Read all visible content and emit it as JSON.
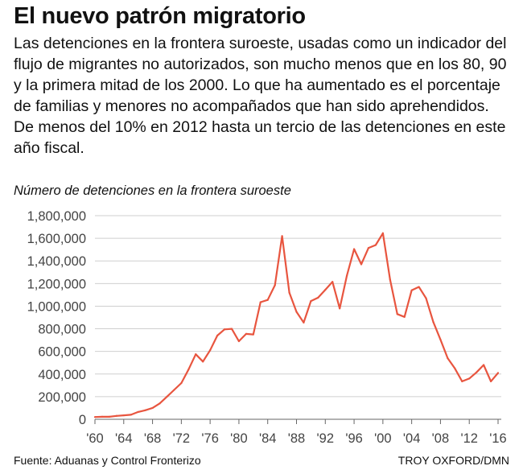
{
  "header": {
    "title": "El nuevo patrón migratorio",
    "subtitle": "Las detenciones en la frontera suroeste, usadas como un indicador del flujo de migrantes no autorizados, son mucho menos que en los 80, 90 y la primera mitad de los 2000. Lo que ha aumentado es el porcentaje de familias y menores no acompañados que han sido aprehendidos. De menos del 10% en 2012 hasta un tercio de las detenciones en este año fiscal."
  },
  "footer": {
    "source": "Fuente: Aduanas y Control Fronterizo",
    "credit": "TROY OXFORD/DMN"
  },
  "chart_data": {
    "type": "line",
    "title": "Número de detenciones en la frontera suroeste",
    "xlabel": "",
    "ylabel": "",
    "xlim": [
      1960,
      2016
    ],
    "ylim": [
      0,
      1800000
    ],
    "grid": true,
    "line_color": "#e8553f",
    "grid_color": "#cfcfcf",
    "x_tick_values": [
      1960,
      1964,
      1968,
      1972,
      1976,
      1980,
      1984,
      1988,
      1992,
      1996,
      2000,
      2004,
      2008,
      2012,
      2016
    ],
    "x_tick_labels": [
      "'60",
      "'64",
      "'68",
      "'72",
      "'76",
      "'80",
      "'84",
      "'88",
      "'92",
      "'96",
      "'00",
      "'04",
      "'08",
      "'12",
      "'16"
    ],
    "y_tick_values": [
      0,
      200000,
      400000,
      600000,
      800000,
      1000000,
      1200000,
      1400000,
      1600000,
      1800000
    ],
    "y_tick_labels": [
      "0",
      "200,000",
      "400,000",
      "600,000",
      "800,000",
      "1,000,000",
      "1,200,000",
      "1,400,000",
      "1,600,000",
      "1,800,000"
    ],
    "series": [
      {
        "x": [
          1960,
          1961,
          1962,
          1963,
          1964,
          1965,
          1966,
          1967,
          1968,
          1969,
          1970,
          1971,
          1972,
          1973,
          1974,
          1975,
          1976,
          1977,
          1978,
          1979,
          1980,
          1981,
          1982,
          1983,
          1984,
          1985,
          1986,
          1987,
          1988,
          1989,
          1990,
          1991,
          1992,
          1993,
          1994,
          1995,
          1996,
          1997,
          1998,
          1999,
          2000,
          2001,
          2002,
          2003,
          2004,
          2005,
          2006,
          2007,
          2008,
          2009,
          2010,
          2011,
          2012,
          2013,
          2014,
          2015,
          2016
        ],
        "values": [
          20000,
          22000,
          22000,
          30000,
          35000,
          40000,
          65000,
          80000,
          100000,
          140000,
          200000,
          260000,
          320000,
          440000,
          575000,
          510000,
          610000,
          740000,
          795000,
          800000,
          690000,
          755000,
          750000,
          1035000,
          1055000,
          1185000,
          1620000,
          1120000,
          950000,
          855000,
          1045000,
          1075000,
          1145000,
          1215000,
          980000,
          1270000,
          1505000,
          1370000,
          1515000,
          1540000,
          1645000,
          1235000,
          930000,
          905000,
          1140000,
          1170000,
          1070000,
          860000,
          705000,
          540000,
          450000,
          335000,
          360000,
          415000,
          480000,
          335000,
          410000
        ]
      }
    ]
  }
}
